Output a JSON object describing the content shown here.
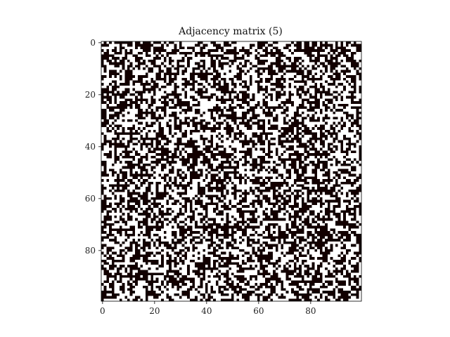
{
  "chart_data": {
    "type": "heatmap",
    "title": "Adjacency matrix (5)",
    "xlabel": "",
    "ylabel": "",
    "rows": 100,
    "cols": 100,
    "xlim": [
      0,
      99
    ],
    "ylim": [
      99,
      0
    ],
    "x_ticks": [
      0,
      20,
      40,
      60,
      80
    ],
    "y_ticks": [
      0,
      20,
      40,
      60,
      80
    ],
    "colormap": "binary",
    "colors": {
      "zero": "#ffffff",
      "one": "#120000"
    },
    "grid": false,
    "legend": "none",
    "values_note": "binary 0/1 adjacency matrix; individual cells not legible"
  }
}
